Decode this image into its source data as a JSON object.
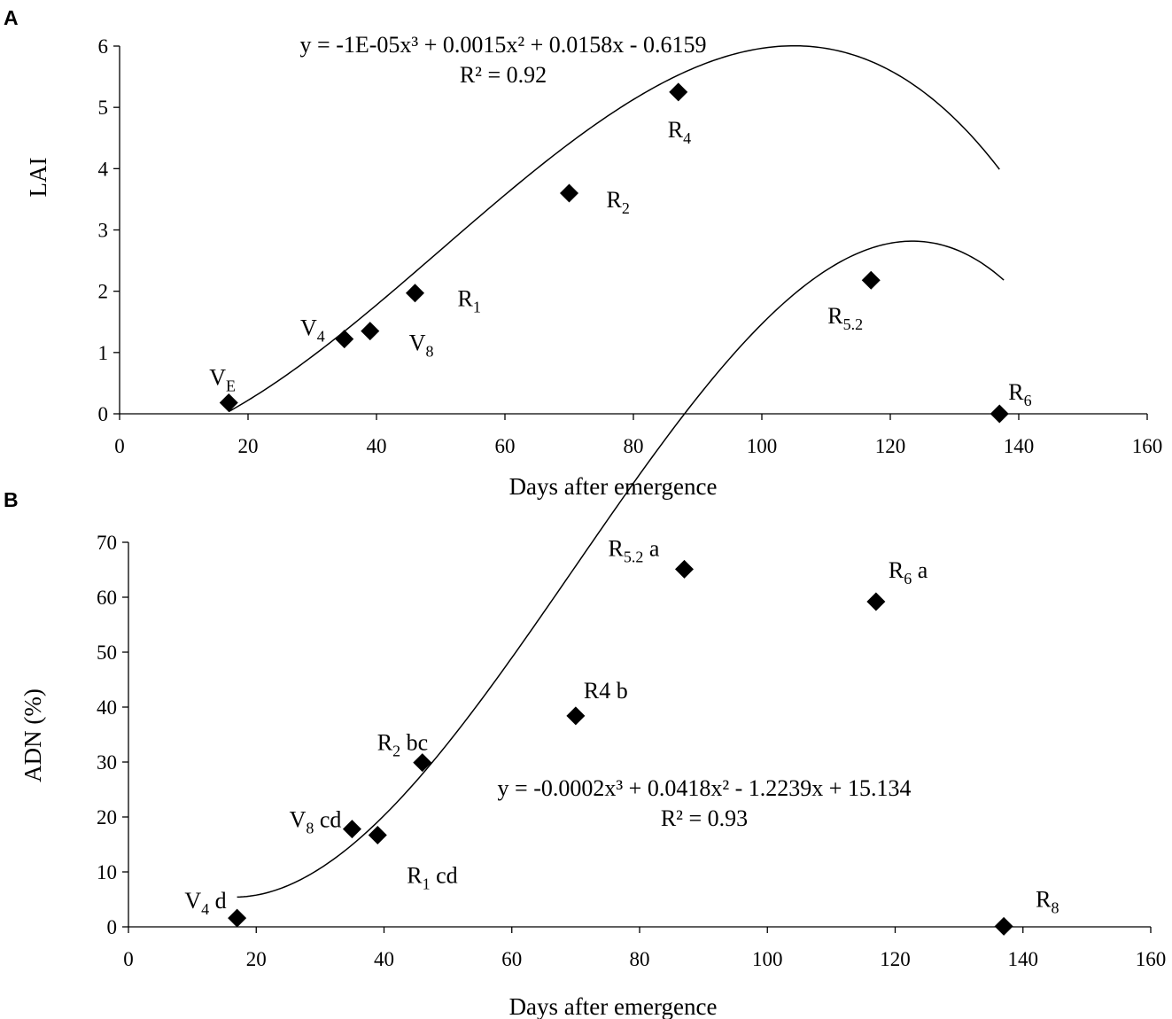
{
  "chart_data": [
    {
      "type": "scatter",
      "panel_label": "A",
      "xlabel": "Days after emergence",
      "ylabel": "LAI",
      "xlim": [
        0,
        160
      ],
      "ylim": [
        0,
        6
      ],
      "xticks": [
        "0",
        "20",
        "40",
        "60",
        "80",
        "100",
        "120",
        "140",
        "160"
      ],
      "yticks": [
        "0",
        "1",
        "2",
        "3",
        "4",
        "5",
        "6"
      ],
      "equation": "y = -1E-05x³ + 0.0015x² + 0.0158x - 0.6159",
      "r_squared": "R² = 0.92",
      "trendline": {
        "type": "polynomial",
        "order": 3,
        "coefficients": [
          -1e-05,
          0.0015,
          0.0158,
          -0.6159
        ],
        "x_range": [
          17,
          137
        ]
      },
      "points": [
        {
          "x": 17,
          "y": 0.18,
          "label": "V",
          "sub": "E"
        },
        {
          "x": 35,
          "y": 1.22,
          "label": "V",
          "sub": "4"
        },
        {
          "x": 39,
          "y": 1.35,
          "label": "V",
          "sub": "8"
        },
        {
          "x": 46,
          "y": 1.97,
          "label": "R",
          "sub": "1"
        },
        {
          "x": 70,
          "y": 3.6,
          "label": "R",
          "sub": "2"
        },
        {
          "x": 87,
          "y": 5.25,
          "label": "R",
          "sub": "4"
        },
        {
          "x": 117,
          "y": 2.18,
          "label": "R",
          "sub": "5.2"
        },
        {
          "x": 137,
          "y": 0.0,
          "label": "R",
          "sub": "6"
        }
      ]
    },
    {
      "type": "scatter",
      "panel_label": "B",
      "xlabel": "Days after emergence",
      "ylabel": "ADN (%)",
      "xlim": [
        0,
        160
      ],
      "ylim": [
        0,
        70
      ],
      "xticks": [
        "0",
        "20",
        "40",
        "60",
        "80",
        "100",
        "120",
        "140",
        "160"
      ],
      "yticks": [
        "0",
        "10",
        "20",
        "30",
        "40",
        "50",
        "60",
        "70"
      ],
      "equation": "y = -0.0002x³ + 0.0418x² - 1.2239x + 15.134",
      "r_squared": "R² = 0.93",
      "trendline": {
        "type": "polynomial",
        "order": 3,
        "coefficients": [
          -0.0002,
          0.0418,
          -1.2239,
          15.134
        ],
        "x_range": [
          17,
          137
        ]
      },
      "points": [
        {
          "x": 17,
          "y": 1.6,
          "label": "V",
          "sub": "4",
          "suffix": " d"
        },
        {
          "x": 35,
          "y": 17.8,
          "label": "V",
          "sub": "8",
          "suffix": " cd"
        },
        {
          "x": 39,
          "y": 16.7,
          "label": "R",
          "sub": "1",
          "suffix": " cd"
        },
        {
          "x": 46,
          "y": 29.9,
          "label": "R",
          "sub": "2",
          "suffix": " bc"
        },
        {
          "x": 70,
          "y": 38.4,
          "label": "R4 b",
          "sub": "",
          "suffix": ""
        },
        {
          "x": 87,
          "y": 65.1,
          "label": "R",
          "sub": "5.2",
          "suffix": " a"
        },
        {
          "x": 117,
          "y": 59.2,
          "label": "R",
          "sub": "6",
          "suffix": " a"
        },
        {
          "x": 137,
          "y": 0.1,
          "label": "R",
          "sub": "8",
          "suffix": ""
        }
      ]
    }
  ]
}
